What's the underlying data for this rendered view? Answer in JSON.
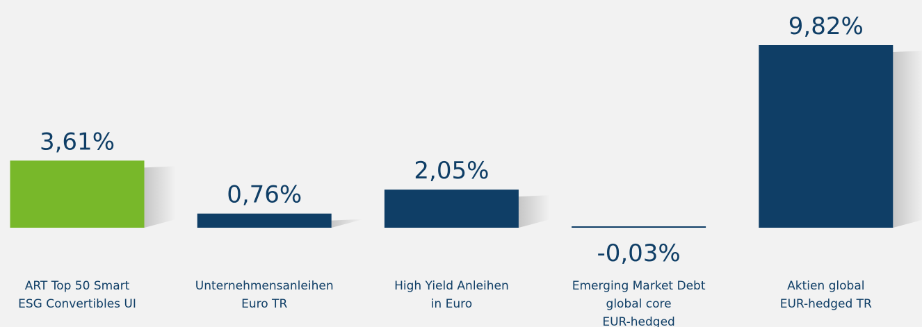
{
  "chart_data": {
    "type": "bar",
    "categories": [
      [
        "ART Top 50 Smart",
        "ESG Convertibles UI"
      ],
      [
        "Unternehmensanleihen",
        "Euro TR"
      ],
      [
        "High Yield Anleihen",
        "in Euro"
      ],
      [
        "Emerging Market Debt",
        "global core",
        "EUR-hedged"
      ],
      [
        "Aktien global",
        "EUR-hedged TR"
      ]
    ],
    "values": [
      3.61,
      0.76,
      2.05,
      -0.03,
      9.82
    ],
    "value_labels": [
      "3,61%",
      "0,76%",
      "2,05%",
      "-0,03%",
      "9,82%"
    ],
    "colors": [
      "#78b82a",
      "#0f3e66",
      "#0f3e66",
      "#0f3e66",
      "#0f3e66"
    ]
  }
}
